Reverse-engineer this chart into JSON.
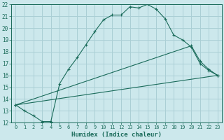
{
  "xlabel": "Humidex (Indice chaleur)",
  "bg_color": "#cce8ec",
  "grid_color": "#aacfd5",
  "line_color": "#1a6b5a",
  "xlim": [
    -0.5,
    23.5
  ],
  "ylim": [
    12,
    22
  ],
  "yticks": [
    12,
    13,
    14,
    15,
    16,
    17,
    18,
    19,
    20,
    21,
    22
  ],
  "xticks": [
    0,
    1,
    2,
    3,
    4,
    5,
    6,
    7,
    8,
    9,
    10,
    11,
    12,
    13,
    14,
    15,
    16,
    17,
    18,
    19,
    20,
    21,
    22,
    23
  ],
  "curve1_x": [
    0,
    1,
    2,
    3,
    4,
    5,
    6,
    7,
    8,
    9,
    10,
    11,
    12,
    13,
    14,
    15,
    16,
    17,
    18,
    19,
    20,
    21,
    22,
    23
  ],
  "curve1_y": [
    13.5,
    13.0,
    12.6,
    12.1,
    12.1,
    15.3,
    16.5,
    17.5,
    18.6,
    19.7,
    20.7,
    21.1,
    21.1,
    21.8,
    21.7,
    22.0,
    21.6,
    20.8,
    19.4,
    19.0,
    18.4,
    17.0,
    16.4,
    16.0
  ],
  "curve2_x": [
    0,
    23
  ],
  "curve2_y": [
    13.5,
    16.0
  ],
  "curve3_x": [
    0,
    20,
    21,
    22,
    23
  ],
  "curve3_y": [
    13.5,
    18.5,
    17.2,
    16.5,
    16.0
  ],
  "markersize": 3.5
}
